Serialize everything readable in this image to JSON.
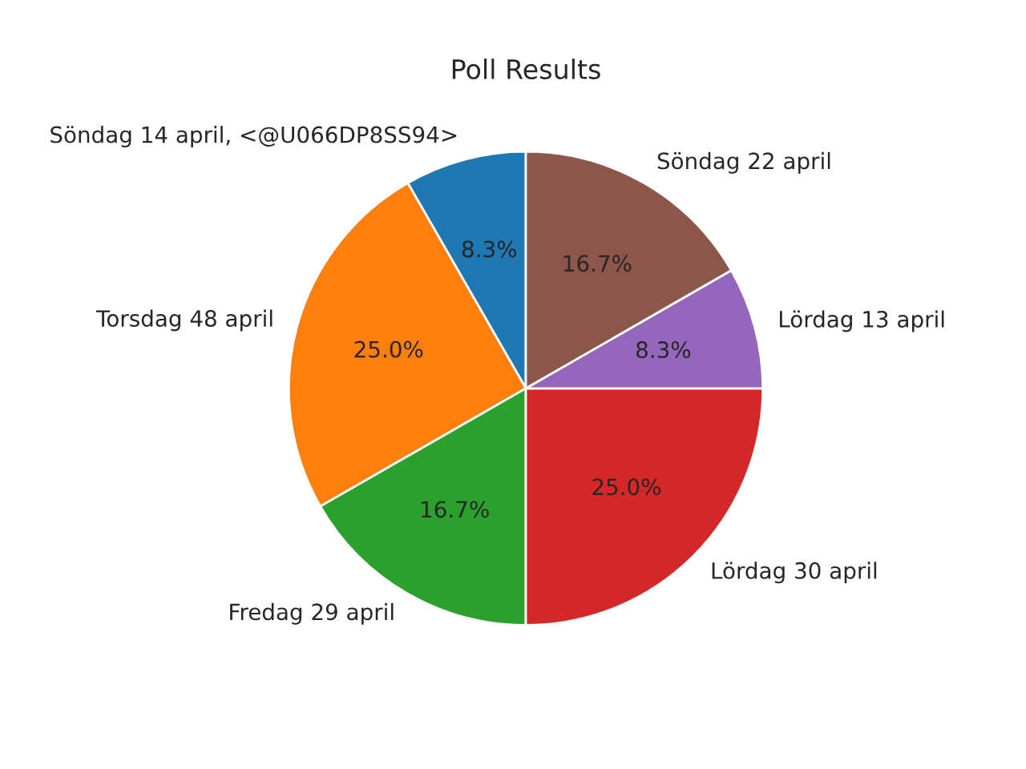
{
  "chart_data": {
    "type": "pie",
    "title": "Poll Results",
    "categories": [
      "Söndag 14 april, <@U066DP8SS94>",
      "Torsdag 48 april",
      "Fredag 29 april",
      "Lördag 30 april",
      "Lördag 13 april",
      "Söndag 22 april"
    ],
    "values": [
      8.3,
      25.0,
      16.7,
      25.0,
      8.3,
      16.7
    ],
    "value_labels": [
      "8.3%",
      "25.0%",
      "16.7%",
      "25.0%",
      "8.3%",
      "16.7%"
    ],
    "colors": [
      "#1f77b4",
      "#ff7f0e",
      "#2ca02c",
      "#d62728",
      "#9467bd",
      "#8c564b"
    ]
  }
}
